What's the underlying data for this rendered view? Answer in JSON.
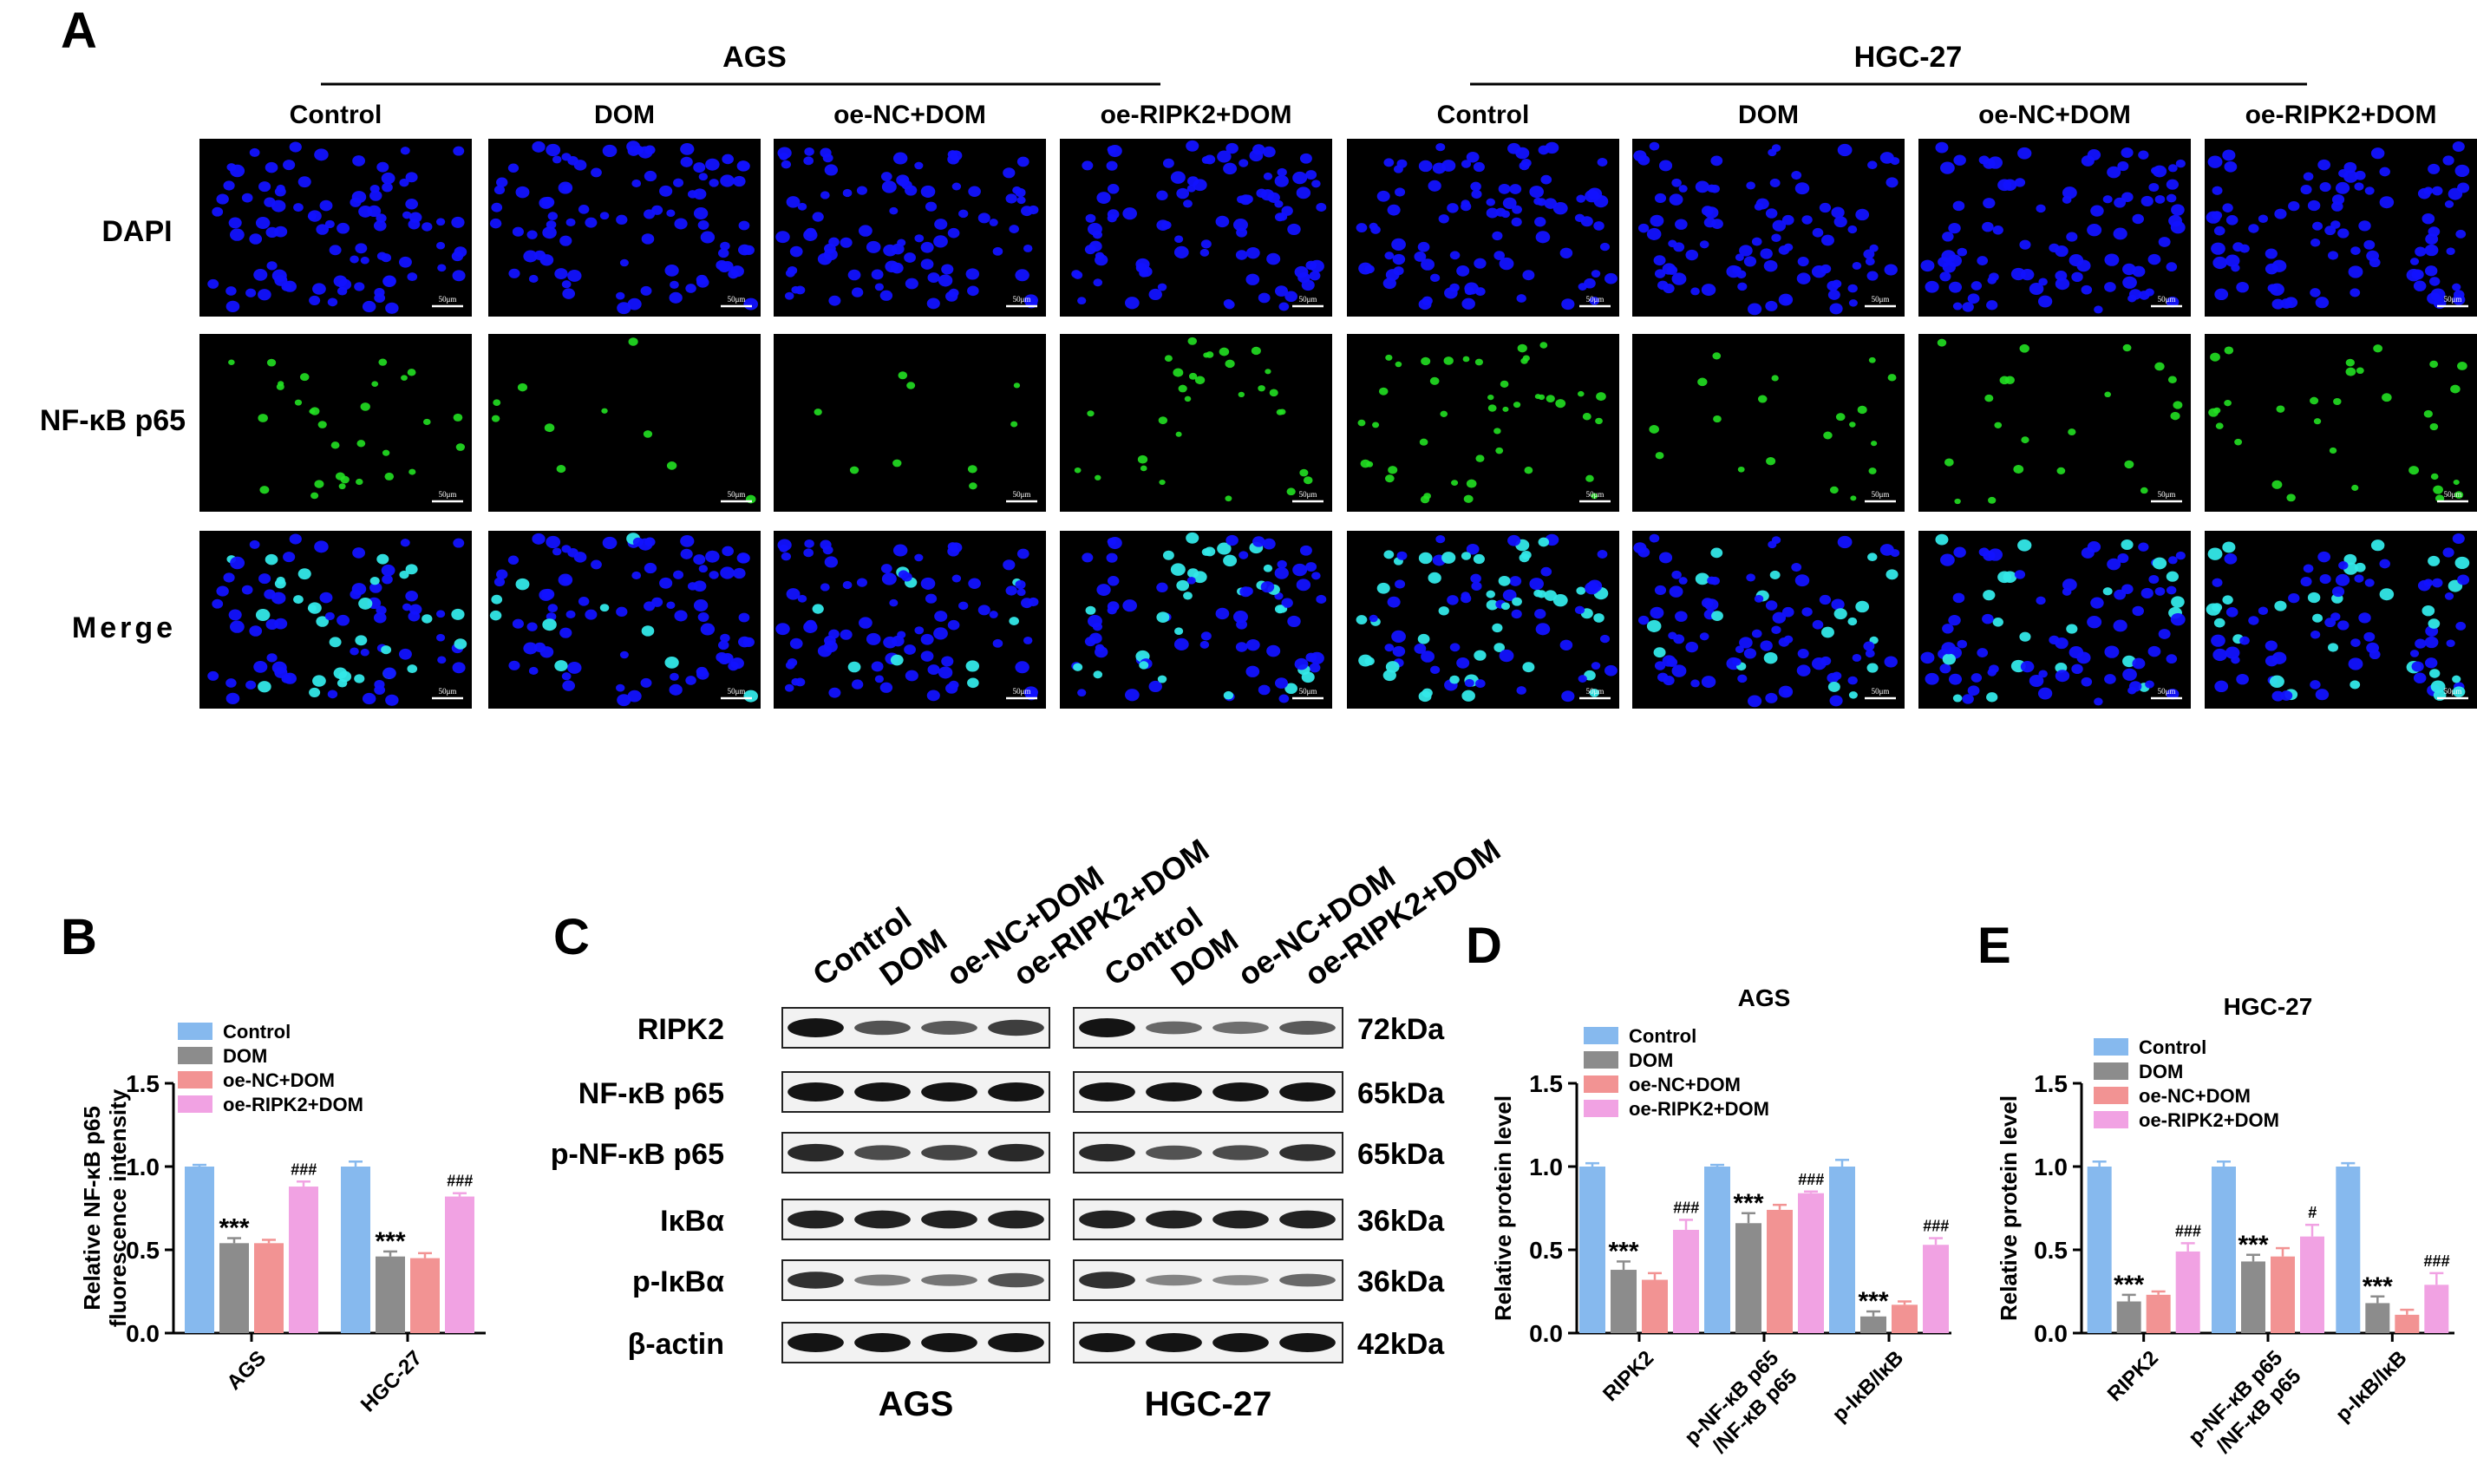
{
  "panels": {
    "A": "A",
    "B": "B",
    "C": "C",
    "D": "D",
    "E": "E"
  },
  "panel_a": {
    "cell_lines": [
      "AGS",
      "HGC-27"
    ],
    "groups": [
      "Control",
      "DOM",
      "oe-NC+DOM",
      "oe-RIPK2+DOM"
    ],
    "rows": [
      "DAPI",
      "NF-κB p65",
      "Merge"
    ],
    "scale_bar": "50μm"
  },
  "panel_c": {
    "lanes": [
      "Control",
      "DOM",
      "oe-NC+DOM",
      "oe-RIPK2+DOM"
    ],
    "blocks": [
      "AGS",
      "HGC-27"
    ],
    "proteins": [
      {
        "name": "RIPK2",
        "mw": "72kDa"
      },
      {
        "name": "NF-κB p65",
        "mw": "65kDa"
      },
      {
        "name": "p-NF-κB p65",
        "mw": "65kDa"
      },
      {
        "name": "IκBα",
        "mw": "36kDa"
      },
      {
        "name": "p-IκBα",
        "mw": "36kDa"
      },
      {
        "name": "β-actin",
        "mw": "42kDa"
      }
    ]
  },
  "colors": {
    "Control": "#86b9ee",
    "DOM": "#8c8c8c",
    "oe-NC+DOM": "#f29393",
    "oe-RIPK2+DOM": "#f1a2e3",
    "dapi": "#1212ff",
    "p65": "#22e022",
    "merge": "#33e8e8"
  },
  "chart_data": [
    {
      "panel": "B",
      "type": "bar",
      "title": "",
      "ylabel": "Relative NF-κB p65\nfluorescence intensity",
      "xlabel": "",
      "categories": [
        "AGS",
        "HGC-27"
      ],
      "ylim": [
        0,
        1.5
      ],
      "yticks": [
        "0.0",
        "0.5",
        "1.0",
        "1.5"
      ],
      "legend": "top-left",
      "series": [
        {
          "name": "Control",
          "values": [
            1.0,
            1.0
          ],
          "errors": [
            0.01,
            0.03
          ]
        },
        {
          "name": "DOM",
          "values": [
            0.54,
            0.46
          ],
          "errors": [
            0.03,
            0.03
          ]
        },
        {
          "name": "oe-NC+DOM",
          "values": [
            0.54,
            0.45
          ],
          "errors": [
            0.02,
            0.03
          ]
        },
        {
          "name": "oe-RIPK2+DOM",
          "values": [
            0.88,
            0.82
          ],
          "errors": [
            0.03,
            0.02
          ]
        }
      ],
      "annotations": [
        {
          "category": 0,
          "series": 1,
          "text": "***"
        },
        {
          "category": 0,
          "series": 3,
          "text": "###"
        },
        {
          "category": 1,
          "series": 1,
          "text": "***"
        },
        {
          "category": 1,
          "series": 3,
          "text": "###"
        }
      ]
    },
    {
      "panel": "D",
      "type": "bar",
      "title": "AGS",
      "ylabel": "Relative protein level",
      "xlabel": "",
      "categories": [
        "RIPK2",
        "p-NF-κB p65\n/NF-κB p65",
        "p-IκB/IκB"
      ],
      "ylim": [
        0,
        1.5
      ],
      "yticks": [
        "0.0",
        "0.5",
        "1.0",
        "1.5"
      ],
      "legend": "top-left",
      "series": [
        {
          "name": "Control",
          "values": [
            1.0,
            1.0,
            1.0
          ],
          "errors": [
            0.02,
            0.01,
            0.04
          ]
        },
        {
          "name": "DOM",
          "values": [
            0.38,
            0.66,
            0.1
          ],
          "errors": [
            0.05,
            0.06,
            0.03
          ]
        },
        {
          "name": "oe-NC+DOM",
          "values": [
            0.32,
            0.74,
            0.17
          ],
          "errors": [
            0.04,
            0.03,
            0.02
          ]
        },
        {
          "name": "oe-RIPK2+DOM",
          "values": [
            0.62,
            0.84,
            0.53
          ],
          "errors": [
            0.06,
            0.01,
            0.04
          ]
        }
      ],
      "annotations": [
        {
          "category": 0,
          "series": 1,
          "text": "***"
        },
        {
          "category": 0,
          "series": 3,
          "text": "###"
        },
        {
          "category": 1,
          "series": 1,
          "text": "***"
        },
        {
          "category": 1,
          "series": 3,
          "text": "###"
        },
        {
          "category": 2,
          "series": 1,
          "text": "***"
        },
        {
          "category": 2,
          "series": 3,
          "text": "###"
        }
      ]
    },
    {
      "panel": "E",
      "type": "bar",
      "title": "HGC-27",
      "ylabel": "Relative protein level",
      "xlabel": "",
      "categories": [
        "RIPK2",
        "p-NF-κB p65\n/NF-κB p65",
        "p-IκB/IκB"
      ],
      "ylim": [
        0,
        1.5
      ],
      "yticks": [
        "0.0",
        "0.5",
        "1.0",
        "1.5"
      ],
      "legend": "top-left",
      "series": [
        {
          "name": "Control",
          "values": [
            1.0,
            1.0,
            1.0
          ],
          "errors": [
            0.03,
            0.03,
            0.02
          ]
        },
        {
          "name": "DOM",
          "values": [
            0.19,
            0.43,
            0.18
          ],
          "errors": [
            0.04,
            0.04,
            0.04
          ]
        },
        {
          "name": "oe-NC+DOM",
          "values": [
            0.23,
            0.46,
            0.11
          ],
          "errors": [
            0.02,
            0.05,
            0.03
          ]
        },
        {
          "name": "oe-RIPK2+DOM",
          "values": [
            0.49,
            0.58,
            0.29
          ],
          "errors": [
            0.05,
            0.07,
            0.07
          ]
        }
      ],
      "annotations": [
        {
          "category": 0,
          "series": 1,
          "text": "***"
        },
        {
          "category": 0,
          "series": 3,
          "text": "###"
        },
        {
          "category": 1,
          "series": 1,
          "text": "***"
        },
        {
          "category": 1,
          "series": 3,
          "text": "#"
        },
        {
          "category": 2,
          "series": 1,
          "text": "***"
        },
        {
          "category": 2,
          "series": 3,
          "text": "###"
        }
      ]
    }
  ],
  "blot_intensity": {
    "AGS": [
      [
        1.0,
        0.55,
        0.5,
        0.7
      ],
      [
        1.0,
        1.0,
        1.0,
        1.0
      ],
      [
        0.85,
        0.6,
        0.65,
        0.85
      ],
      [
        0.9,
        0.9,
        0.9,
        0.9
      ],
      [
        0.8,
        0.25,
        0.3,
        0.55
      ],
      [
        1.0,
        1.0,
        1.0,
        1.0
      ]
    ],
    "HGC-27": [
      [
        1.0,
        0.4,
        0.35,
        0.5
      ],
      [
        1.0,
        1.0,
        1.0,
        1.0
      ],
      [
        0.85,
        0.55,
        0.6,
        0.8
      ],
      [
        0.9,
        0.9,
        0.9,
        0.9
      ],
      [
        0.8,
        0.2,
        0.15,
        0.4
      ],
      [
        1.0,
        1.0,
        1.0,
        1.0
      ]
    ]
  },
  "nuclei_green_fraction": {
    "AGS": [
      0.35,
      0.12,
      0.1,
      0.3
    ],
    "HGC-27": [
      0.45,
      0.22,
      0.18,
      0.4
    ]
  }
}
